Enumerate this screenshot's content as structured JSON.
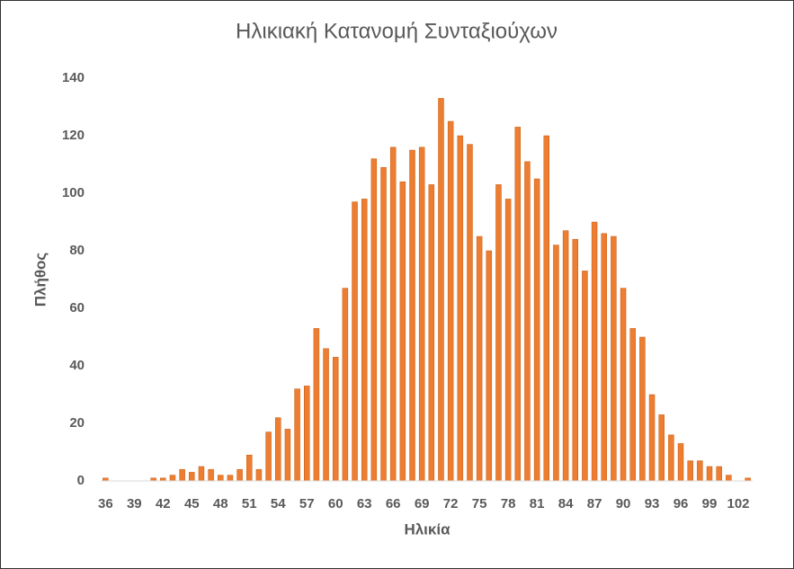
{
  "chart_data": {
    "type": "bar",
    "title": "Ηλικιακή Κατανομή Συνταξιούχων",
    "x_label": "Ηλικία",
    "y_label": "Πλήθος",
    "categories": [
      "36",
      null,
      null,
      "39",
      null,
      null,
      "42",
      null,
      null,
      "45",
      null,
      null,
      "48",
      null,
      null,
      "51",
      null,
      null,
      "54",
      null,
      null,
      "57",
      null,
      null,
      "60",
      null,
      null,
      "63",
      null,
      null,
      "66",
      null,
      null,
      "69",
      null,
      null,
      "72",
      null,
      null,
      "75",
      null,
      null,
      "78",
      null,
      null,
      "81",
      null,
      null,
      "84",
      null,
      null,
      "87",
      null,
      null,
      "90",
      null,
      null,
      "93",
      null,
      null,
      "96",
      null,
      null,
      "99",
      null,
      null,
      "102",
      null
    ],
    "values": [
      1,
      0,
      0,
      0,
      0,
      1,
      1,
      2,
      4,
      3,
      5,
      4,
      2,
      2,
      4,
      9,
      4,
      17,
      22,
      18,
      32,
      33,
      53,
      46,
      43,
      67,
      97,
      98,
      112,
      109,
      116,
      104,
      115,
      116,
      103,
      133,
      125,
      120,
      117,
      85,
      80,
      103,
      98,
      123,
      111,
      105,
      120,
      82,
      87,
      84,
      73,
      90,
      86,
      85,
      67,
      53,
      50,
      30,
      23,
      16,
      13,
      7,
      7,
      5,
      5,
      2,
      0,
      1
    ],
    "color": "#ed7d31",
    "ylim": [
      0,
      140
    ],
    "yticks": [
      0,
      20,
      40,
      60,
      80,
      100,
      120,
      140
    ],
    "grid": false
  }
}
